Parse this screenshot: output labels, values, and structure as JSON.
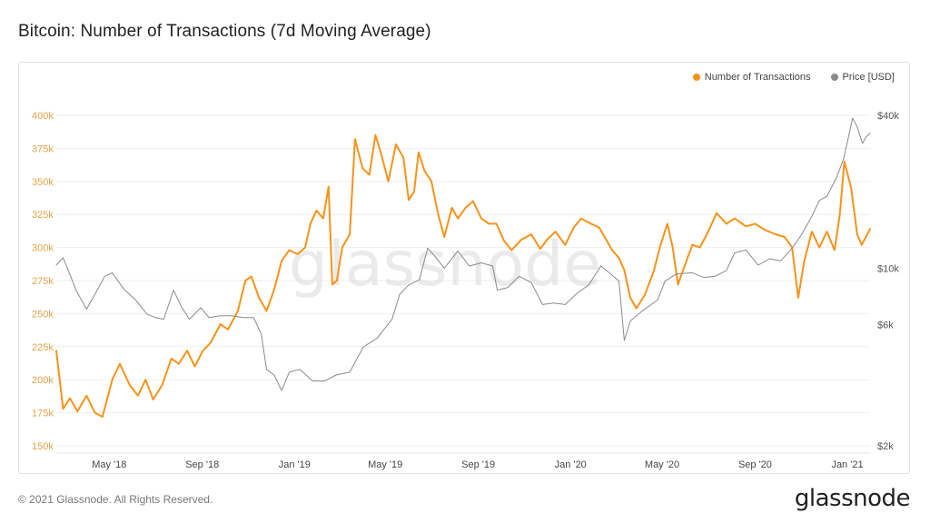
{
  "title": "Bitcoin: Number of Transactions (7d Moving Average)",
  "footer": {
    "copyright": "© 2021 Glassnode. All Rights Reserved.",
    "logo": "glassnode"
  },
  "watermark": "glassnode",
  "colors": {
    "transactions": "#f7931a",
    "price": "#8a8a8a",
    "left_axis_text": "#e8a24a",
    "right_axis_text": "#555555"
  },
  "chart_data": {
    "type": "line",
    "title": "Bitcoin: Number of Transactions (7d Moving Average)",
    "x_range": [
      "2018-02-20",
      "2021-01-31"
    ],
    "x_ticks": [
      {
        "date": "2018-05-01",
        "label": "May '18"
      },
      {
        "date": "2018-09-01",
        "label": "Sep '18"
      },
      {
        "date": "2019-01-01",
        "label": "Jan '19"
      },
      {
        "date": "2019-05-01",
        "label": "May '19"
      },
      {
        "date": "2019-09-01",
        "label": "Sep '19"
      },
      {
        "date": "2020-01-01",
        "label": "Jan '20"
      },
      {
        "date": "2020-05-01",
        "label": "May '20"
      },
      {
        "date": "2020-09-01",
        "label": "Sep '20"
      },
      {
        "date": "2021-01-01",
        "label": "Jan '21"
      }
    ],
    "y_left": {
      "min": 150000,
      "max": 400000,
      "scale": "linear",
      "ticks": [
        {
          "value": 400000,
          "label": "400k"
        },
        {
          "value": 375000,
          "label": "375k"
        },
        {
          "value": 350000,
          "label": "350k"
        },
        {
          "value": 325000,
          "label": "325k"
        },
        {
          "value": 300000,
          "label": "300k"
        },
        {
          "value": 275000,
          "label": "275k"
        },
        {
          "value": 250000,
          "label": "250k"
        },
        {
          "value": 225000,
          "label": "225k"
        },
        {
          "value": 200000,
          "label": "200k"
        },
        {
          "value": 175000,
          "label": "175k"
        },
        {
          "value": 150000,
          "label": "150k"
        }
      ]
    },
    "y_right": {
      "min": 2000,
      "max": 40000,
      "scale": "log",
      "ticks": [
        {
          "value": 40000,
          "label": "$40k"
        },
        {
          "value": 10000,
          "label": "$10k"
        },
        {
          "value": 6000,
          "label": "$6k"
        },
        {
          "value": 2000,
          "label": "$2k"
        }
      ]
    },
    "grid": true,
    "legend_position": "top-right",
    "series": [
      {
        "name": "Number of Transactions",
        "axis": "left",
        "color": "#f7931a",
        "points": [
          [
            "2018-02-20",
            222000
          ],
          [
            "2018-03-01",
            178000
          ],
          [
            "2018-03-10",
            186000
          ],
          [
            "2018-03-20",
            176000
          ],
          [
            "2018-04-01",
            188000
          ],
          [
            "2018-04-12",
            175000
          ],
          [
            "2018-04-22",
            172000
          ],
          [
            "2018-05-05",
            200000
          ],
          [
            "2018-05-15",
            212000
          ],
          [
            "2018-05-28",
            196000
          ],
          [
            "2018-06-08",
            188000
          ],
          [
            "2018-06-18",
            200000
          ],
          [
            "2018-06-28",
            185000
          ],
          [
            "2018-07-10",
            196000
          ],
          [
            "2018-07-22",
            216000
          ],
          [
            "2018-08-01",
            212000
          ],
          [
            "2018-08-12",
            222000
          ],
          [
            "2018-08-22",
            210000
          ],
          [
            "2018-09-02",
            222000
          ],
          [
            "2018-09-12",
            228000
          ],
          [
            "2018-09-25",
            242000
          ],
          [
            "2018-10-05",
            238000
          ],
          [
            "2018-10-18",
            252000
          ],
          [
            "2018-10-28",
            275000
          ],
          [
            "2018-11-05",
            278000
          ],
          [
            "2018-11-15",
            262000
          ],
          [
            "2018-11-25",
            252000
          ],
          [
            "2018-12-05",
            268000
          ],
          [
            "2018-12-15",
            290000
          ],
          [
            "2018-12-25",
            298000
          ],
          [
            "2019-01-05",
            295000
          ],
          [
            "2019-01-15",
            300000
          ],
          [
            "2019-01-22",
            318000
          ],
          [
            "2019-01-30",
            328000
          ],
          [
            "2019-02-08",
            322000
          ],
          [
            "2019-02-15",
            346000
          ],
          [
            "2019-02-20",
            272000
          ],
          [
            "2019-02-26",
            275000
          ],
          [
            "2019-03-05",
            300000
          ],
          [
            "2019-03-15",
            310000
          ],
          [
            "2019-03-22",
            382000
          ],
          [
            "2019-04-01",
            360000
          ],
          [
            "2019-04-10",
            355000
          ],
          [
            "2019-04-18",
            385000
          ],
          [
            "2019-04-25",
            372000
          ],
          [
            "2019-05-05",
            350000
          ],
          [
            "2019-05-15",
            378000
          ],
          [
            "2019-05-25",
            368000
          ],
          [
            "2019-06-01",
            336000
          ],
          [
            "2019-06-08",
            342000
          ],
          [
            "2019-06-14",
            372000
          ],
          [
            "2019-06-22",
            358000
          ],
          [
            "2019-07-01",
            350000
          ],
          [
            "2019-07-10",
            325000
          ],
          [
            "2019-07-18",
            308000
          ],
          [
            "2019-07-28",
            330000
          ],
          [
            "2019-08-05",
            322000
          ],
          [
            "2019-08-15",
            330000
          ],
          [
            "2019-08-25",
            335000
          ],
          [
            "2019-09-05",
            322000
          ],
          [
            "2019-09-15",
            318000
          ],
          [
            "2019-09-25",
            318000
          ],
          [
            "2019-10-05",
            305000
          ],
          [
            "2019-10-15",
            298000
          ],
          [
            "2019-10-28",
            306000
          ],
          [
            "2019-11-10",
            310000
          ],
          [
            "2019-11-22",
            299000
          ],
          [
            "2019-12-01",
            306000
          ],
          [
            "2019-12-12",
            312000
          ],
          [
            "2019-12-25",
            302000
          ],
          [
            "2020-01-05",
            315000
          ],
          [
            "2020-01-15",
            322000
          ],
          [
            "2020-01-28",
            318000
          ],
          [
            "2020-02-08",
            315000
          ],
          [
            "2020-02-18",
            305000
          ],
          [
            "2020-02-25",
            298000
          ],
          [
            "2020-03-05",
            292000
          ],
          [
            "2020-03-12",
            283000
          ],
          [
            "2020-03-20",
            262000
          ],
          [
            "2020-03-28",
            254000
          ],
          [
            "2020-04-08",
            264000
          ],
          [
            "2020-04-20",
            282000
          ],
          [
            "2020-04-28",
            300000
          ],
          [
            "2020-05-08",
            318000
          ],
          [
            "2020-05-15",
            300000
          ],
          [
            "2020-05-22",
            272000
          ],
          [
            "2020-05-30",
            285000
          ],
          [
            "2020-06-10",
            302000
          ],
          [
            "2020-06-20",
            300000
          ],
          [
            "2020-07-01",
            312000
          ],
          [
            "2020-07-12",
            326000
          ],
          [
            "2020-07-25",
            318000
          ],
          [
            "2020-08-05",
            322000
          ],
          [
            "2020-08-20",
            316000
          ],
          [
            "2020-09-01",
            318000
          ],
          [
            "2020-09-15",
            313000
          ],
          [
            "2020-09-28",
            310000
          ],
          [
            "2020-10-10",
            308000
          ],
          [
            "2020-10-20",
            300000
          ],
          [
            "2020-10-28",
            262000
          ],
          [
            "2020-11-05",
            290000
          ],
          [
            "2020-11-15",
            312000
          ],
          [
            "2020-11-25",
            300000
          ],
          [
            "2020-12-05",
            312000
          ],
          [
            "2020-12-15",
            298000
          ],
          [
            "2020-12-22",
            325000
          ],
          [
            "2020-12-28",
            365000
          ],
          [
            "2021-01-06",
            345000
          ],
          [
            "2021-01-14",
            310000
          ],
          [
            "2021-01-20",
            302000
          ],
          [
            "2021-01-31",
            314000
          ]
        ]
      },
      {
        "name": "Price [USD]",
        "axis": "right",
        "color": "#8a8a8a",
        "points": [
          [
            "2018-02-20",
            10300
          ],
          [
            "2018-03-01",
            11000
          ],
          [
            "2018-03-08",
            9800
          ],
          [
            "2018-03-18",
            8200
          ],
          [
            "2018-04-01",
            6900
          ],
          [
            "2018-04-12",
            7900
          ],
          [
            "2018-04-25",
            9300
          ],
          [
            "2018-05-05",
            9600
          ],
          [
            "2018-05-20",
            8300
          ],
          [
            "2018-06-05",
            7500
          ],
          [
            "2018-06-20",
            6600
          ],
          [
            "2018-07-01",
            6400
          ],
          [
            "2018-07-12",
            6300
          ],
          [
            "2018-07-25",
            8200
          ],
          [
            "2018-08-05",
            7000
          ],
          [
            "2018-08-15",
            6300
          ],
          [
            "2018-08-30",
            7000
          ],
          [
            "2018-09-10",
            6400
          ],
          [
            "2018-09-25",
            6500
          ],
          [
            "2018-10-10",
            6500
          ],
          [
            "2018-10-25",
            6400
          ],
          [
            "2018-11-08",
            6400
          ],
          [
            "2018-11-18",
            5500
          ],
          [
            "2018-11-25",
            4000
          ],
          [
            "2018-12-05",
            3800
          ],
          [
            "2018-12-15",
            3300
          ],
          [
            "2018-12-25",
            3900
          ],
          [
            "2019-01-08",
            4000
          ],
          [
            "2019-01-25",
            3600
          ],
          [
            "2019-02-10",
            3600
          ],
          [
            "2019-02-25",
            3800
          ],
          [
            "2019-03-15",
            3900
          ],
          [
            "2019-04-02",
            4900
          ],
          [
            "2019-04-20",
            5300
          ],
          [
            "2019-05-10",
            6300
          ],
          [
            "2019-05-20",
            7900
          ],
          [
            "2019-06-01",
            8600
          ],
          [
            "2019-06-15",
            9000
          ],
          [
            "2019-06-26",
            12000
          ],
          [
            "2019-07-05",
            11200
          ],
          [
            "2019-07-18",
            10000
          ],
          [
            "2019-08-05",
            11700
          ],
          [
            "2019-08-20",
            10200
          ],
          [
            "2019-09-05",
            10500
          ],
          [
            "2019-09-20",
            10200
          ],
          [
            "2019-09-26",
            8200
          ],
          [
            "2019-10-10",
            8400
          ],
          [
            "2019-10-25",
            9300
          ],
          [
            "2019-11-10",
            8800
          ],
          [
            "2019-11-25",
            7200
          ],
          [
            "2019-12-10",
            7300
          ],
          [
            "2019-12-25",
            7200
          ],
          [
            "2020-01-10",
            8000
          ],
          [
            "2020-01-25",
            8600
          ],
          [
            "2020-02-10",
            10200
          ],
          [
            "2020-02-25",
            9400
          ],
          [
            "2020-03-05",
            8900
          ],
          [
            "2020-03-12",
            5200
          ],
          [
            "2020-03-20",
            6200
          ],
          [
            "2020-04-05",
            6800
          ],
          [
            "2020-04-25",
            7500
          ],
          [
            "2020-05-05",
            8900
          ],
          [
            "2020-05-20",
            9500
          ],
          [
            "2020-06-10",
            9600
          ],
          [
            "2020-06-25",
            9200
          ],
          [
            "2020-07-10",
            9300
          ],
          [
            "2020-07-25",
            9800
          ],
          [
            "2020-08-05",
            11500
          ],
          [
            "2020-08-20",
            11800
          ],
          [
            "2020-09-05",
            10300
          ],
          [
            "2020-09-20",
            10900
          ],
          [
            "2020-10-05",
            10700
          ],
          [
            "2020-10-20",
            12000
          ],
          [
            "2020-11-01",
            13500
          ],
          [
            "2020-11-15",
            16000
          ],
          [
            "2020-11-25",
            18500
          ],
          [
            "2020-12-05",
            19200
          ],
          [
            "2020-12-17",
            22500
          ],
          [
            "2020-12-27",
            27000
          ],
          [
            "2021-01-08",
            39000
          ],
          [
            "2021-01-14",
            36000
          ],
          [
            "2021-01-21",
            31000
          ],
          [
            "2021-01-26",
            33000
          ],
          [
            "2021-01-31",
            34000
          ]
        ]
      }
    ]
  }
}
